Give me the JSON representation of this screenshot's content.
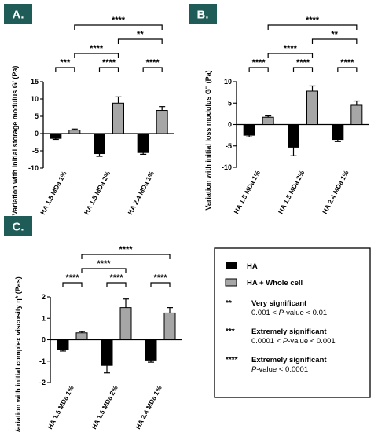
{
  "colors": {
    "ha": "#000000",
    "ha_whole_cell": "#a6a6a6",
    "badge": "#1f5c57"
  },
  "chart_data": [
    {
      "type": "bar",
      "panel": "A.",
      "ylabel": "Variation with initial storage modulus G' (Pa)",
      "ylim": [
        -10,
        15
      ],
      "yticks": [
        -10,
        -5,
        0,
        5,
        10,
        15
      ],
      "categories": [
        "HA 1.5 MDa 1%",
        "HA 1.5 MDa 2%",
        "HA 2.4 MDa 1%"
      ],
      "series": [
        {
          "name": "HA",
          "values": [
            -1.4,
            -5.8,
            -5.5
          ],
          "errors": [
            0.3,
            0.8,
            0.5
          ]
        },
        {
          "name": "HA + Whole cell",
          "values": [
            1.0,
            8.8,
            6.7
          ],
          "errors": [
            0.3,
            1.8,
            1.1
          ]
        }
      ],
      "significance": [
        {
          "from": [
            0,
            0
          ],
          "to": [
            0,
            1
          ],
          "label": "***",
          "level": 0
        },
        {
          "from": [
            1,
            0
          ],
          "to": [
            1,
            1
          ],
          "label": "****",
          "level": 0
        },
        {
          "from": [
            2,
            0
          ],
          "to": [
            2,
            1
          ],
          "label": "****",
          "level": 0
        },
        {
          "from": [
            0,
            1
          ],
          "to": [
            1,
            1
          ],
          "label": "****",
          "level": 1
        },
        {
          "from": [
            1,
            1
          ],
          "to": [
            2,
            1
          ],
          "label": "**",
          "level": 2
        },
        {
          "from": [
            0,
            1
          ],
          "to": [
            2,
            1
          ],
          "label": "****",
          "level": 3
        }
      ]
    },
    {
      "type": "bar",
      "panel": "B.",
      "ylabel": "Variation with initial loss modulus G'' (Pa)",
      "ylim": [
        -10,
        10
      ],
      "yticks": [
        -10,
        -5,
        0,
        5,
        10
      ],
      "categories": [
        "HA 1.5 MDa 1%",
        "HA 1.5 MDa 2%",
        "HA 2.4 MDa 1%"
      ],
      "series": [
        {
          "name": "HA",
          "values": [
            -2.5,
            -5.3,
            -3.5
          ],
          "errors": [
            0.4,
            2.0,
            0.5
          ]
        },
        {
          "name": "HA + Whole cell",
          "values": [
            1.7,
            7.8,
            4.5
          ],
          "errors": [
            0.3,
            1.2,
            1.0
          ]
        }
      ],
      "significance": [
        {
          "from": [
            0,
            0
          ],
          "to": [
            0,
            1
          ],
          "label": "****",
          "level": 0
        },
        {
          "from": [
            1,
            0
          ],
          "to": [
            1,
            1
          ],
          "label": "****",
          "level": 0
        },
        {
          "from": [
            2,
            0
          ],
          "to": [
            2,
            1
          ],
          "label": "****",
          "level": 0
        },
        {
          "from": [
            0,
            1
          ],
          "to": [
            1,
            1
          ],
          "label": "****",
          "level": 1
        },
        {
          "from": [
            1,
            1
          ],
          "to": [
            2,
            1
          ],
          "label": "**",
          "level": 2
        },
        {
          "from": [
            0,
            1
          ],
          "to": [
            2,
            1
          ],
          "label": "****",
          "level": 3
        }
      ]
    },
    {
      "type": "bar",
      "panel": "C.",
      "ylabel": "Variation with initial complex viscosity η* (Pas)",
      "ylim": [
        -2,
        2
      ],
      "yticks": [
        -2,
        -1,
        0,
        1,
        2
      ],
      "categories": [
        "HA 1.5 MDa 1%",
        "HA 1.5 MDa 2%",
        "HA 2.4 MDa 1%"
      ],
      "series": [
        {
          "name": "HA",
          "values": [
            -0.45,
            -1.2,
            -0.95
          ],
          "errors": [
            0.08,
            0.35,
            0.1
          ]
        },
        {
          "name": "HA + Whole cell",
          "values": [
            0.32,
            1.5,
            1.25
          ],
          "errors": [
            0.06,
            0.4,
            0.25
          ]
        }
      ],
      "significance": [
        {
          "from": [
            0,
            0
          ],
          "to": [
            0,
            1
          ],
          "label": "****",
          "level": 0
        },
        {
          "from": [
            1,
            0
          ],
          "to": [
            1,
            1
          ],
          "label": "****",
          "level": 0
        },
        {
          "from": [
            2,
            0
          ],
          "to": [
            2,
            1
          ],
          "label": "****",
          "level": 0
        },
        {
          "from": [
            0,
            1
          ],
          "to": [
            1,
            1
          ],
          "label": "****",
          "level": 1
        },
        {
          "from": [
            0,
            1
          ],
          "to": [
            2,
            1
          ],
          "label": "****",
          "level": 2
        }
      ]
    }
  ],
  "legend": {
    "items": [
      {
        "label": "HA",
        "color": "#000000"
      },
      {
        "label": "HA + Whole cell",
        "color": "#a6a6a6"
      }
    ],
    "significance": [
      {
        "symbol": "**",
        "title": "Very significant",
        "range": "0.001 < P-value < 0.01"
      },
      {
        "symbol": "***",
        "title": "Extremely significant",
        "range": "0.0001 < P-value < 0.001"
      },
      {
        "symbol": "****",
        "title": "Extremely significant",
        "range": "P-value < 0.0001"
      }
    ]
  }
}
